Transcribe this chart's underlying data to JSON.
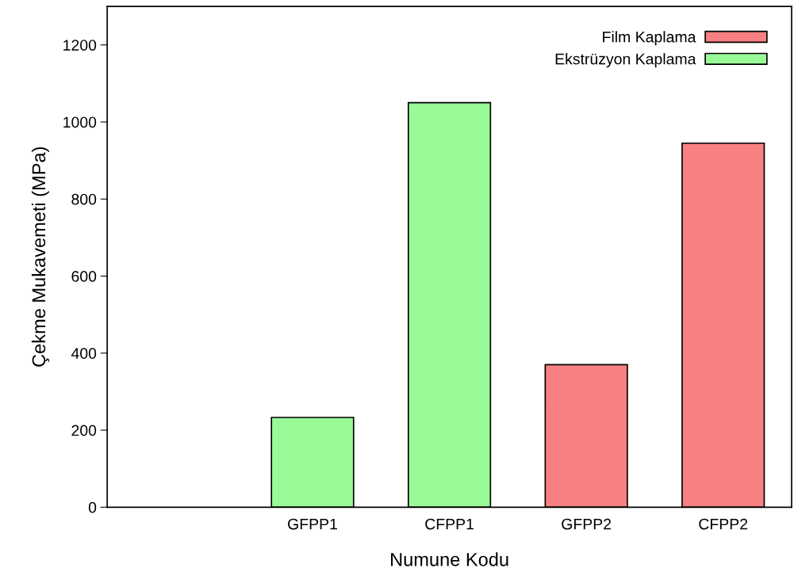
{
  "chart_data": {
    "type": "bar",
    "xlabel": "Numune Kodu",
    "ylabel": "Çekme Mukavemeti (MPa)",
    "categories": [
      null,
      "GFPP1",
      "CFPP1",
      "GFPP2",
      "CFPP2"
    ],
    "series": [
      {
        "name": "Film Kaplama",
        "color": "#f88080",
        "values": [
          null,
          null,
          null,
          370,
          945
        ]
      },
      {
        "name": "Ekstrüzyon Kaplama",
        "color": "#98fb98",
        "values": [
          null,
          233,
          1050,
          null,
          null
        ]
      }
    ],
    "ylim": [
      0,
      1300
    ],
    "yticks": [
      0,
      200,
      400,
      600,
      800,
      1000,
      1200
    ],
    "grid": false,
    "legend": "top right"
  }
}
